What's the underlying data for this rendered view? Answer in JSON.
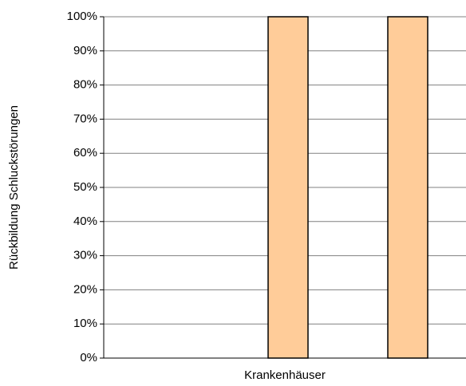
{
  "chart_data": {
    "type": "bar",
    "x_label": "Krankenhäuser",
    "y_label": "Rückbildung Schluckstörungen",
    "categories": [
      null,
      null,
      null
    ],
    "values": [
      0,
      100,
      100
    ],
    "color": "#ffcc99",
    "ylim": [
      0,
      100
    ],
    "yticks": [
      {
        "value": 0,
        "label": "0%"
      },
      {
        "value": 10,
        "label": "10%"
      },
      {
        "value": 20,
        "label": "20%"
      },
      {
        "value": 30,
        "label": "30%"
      },
      {
        "value": 40,
        "label": "40%"
      },
      {
        "value": 50,
        "label": "50%"
      },
      {
        "value": 60,
        "label": "60%"
      },
      {
        "value": 70,
        "label": "70%"
      },
      {
        "value": 80,
        "label": "80%"
      },
      {
        "value": 90,
        "label": "90%"
      },
      {
        "value": 100,
        "label": "100%"
      }
    ],
    "grid": true
  }
}
